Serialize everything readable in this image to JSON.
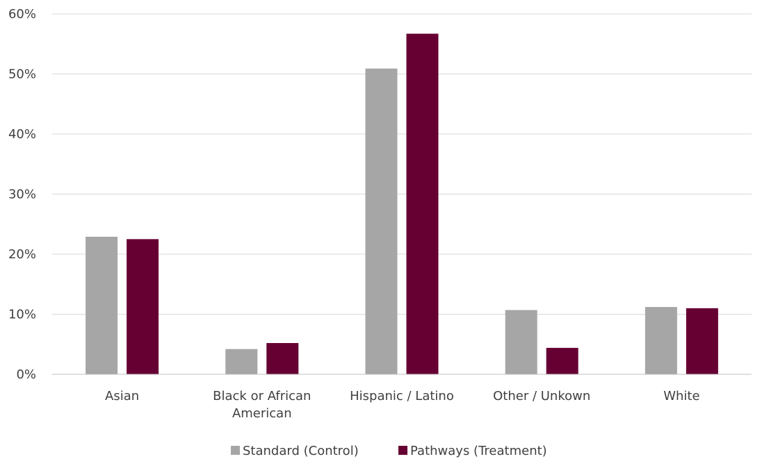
{
  "chart_data": {
    "type": "bar",
    "title": "",
    "xlabel": "",
    "ylabel": "",
    "ylim": [
      0,
      0.6
    ],
    "yticks": [
      "0%",
      "10%",
      "20%",
      "30%",
      "40%",
      "50%",
      "60%"
    ],
    "categories": [
      "Asian",
      "Black or African American",
      "Hispanic / Latino",
      "Other / Unkown",
      "White"
    ],
    "category_lines": [
      [
        "Asian"
      ],
      [
        "Black or African",
        "American"
      ],
      [
        "Hispanic / Latino"
      ],
      [
        "Other / Unkown"
      ],
      [
        "White"
      ]
    ],
    "series": [
      {
        "name": "Standard (Control)",
        "color": "#a6a6a6",
        "values": [
          0.229,
          0.042,
          0.509,
          0.107,
          0.112
        ]
      },
      {
        "name": "Pathways (Treatment)",
        "color": "#660033",
        "values": [
          0.225,
          0.052,
          0.567,
          0.044,
          0.11
        ]
      }
    ],
    "grid": true,
    "legend_position": "bottom-center"
  }
}
